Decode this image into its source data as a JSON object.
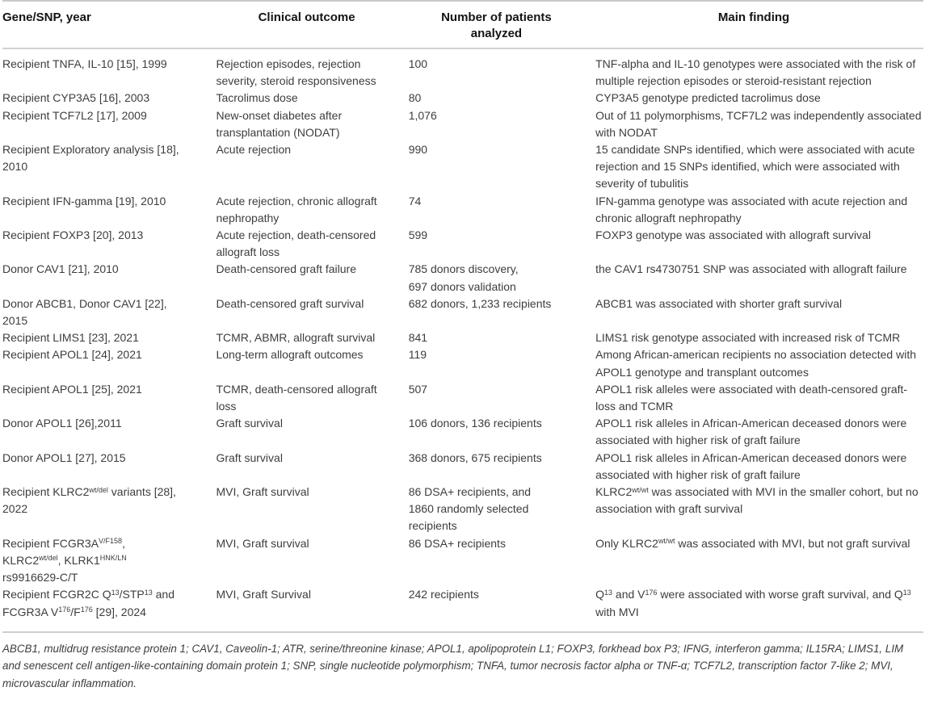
{
  "table": {
    "headers": [
      {
        "label": "Gene/SNP, year"
      },
      {
        "label": "Clinical outcome"
      },
      {
        "label": "Number of patients\nanalyzed"
      },
      {
        "label": "Main finding"
      }
    ],
    "rows": [
      {
        "gene": "Recipient TNFA, IL-10 [15], 1999",
        "outcome": "Rejection episodes, rejection severity, steroid responsiveness",
        "patients": "100",
        "finding": "TNF-alpha and IL-10 genotypes were associated with the risk of multiple rejection episodes or steroid-resistant rejection"
      },
      {
        "gene": "Recipient CYP3A5 [16], 2003",
        "outcome": "Tacrolimus dose",
        "patients": "80",
        "finding": "CYP3A5 genotype predicted tacrolimus dose"
      },
      {
        "gene": "Recipient TCF7L2 [17], 2009",
        "outcome": "New-onset diabetes after transplantation (NODAT)",
        "patients": "1,076",
        "finding": "Out of 11 polymorphisms, TCF7L2 was independently associated with NODAT"
      },
      {
        "gene": "Recipient Exploratory analysis [18],\n2010",
        "outcome": "Acute rejection",
        "patients": "990",
        "finding": "15 candidate SNPs identified, which were associated with acute rejection and 15 SNPs identified, which were associated with severity of tubulitis"
      },
      {
        "gene": "Recipient IFN-gamma [19], 2010",
        "outcome": "Acute rejection, chronic allograft nephropathy",
        "patients": "74",
        "finding": "IFN-gamma genotype was associated with acute rejection and chronic allograft nephropathy"
      },
      {
        "gene": "Recipient FOXP3 [20], 2013",
        "outcome": "Acute rejection, death-censored allograft loss",
        "patients": "599",
        "finding": "FOXP3 genotype was associated with allograft survival"
      },
      {
        "gene": "Donor CAV1 [21], 2010",
        "outcome": "Death-censored graft failure",
        "patients": "785 donors discovery,\n697 donors validation",
        "finding": "the CAV1 rs4730751 SNP was associated with allograft failure"
      },
      {
        "gene": "Donor ABCB1, Donor CAV1 [22],\n2015",
        "outcome": "Death-censored graft survival",
        "patients": "682 donors, 1,233 recipients",
        "finding": "ABCB1 was associated with shorter graft survival"
      },
      {
        "gene": "Recipient LIMS1 [23], 2021",
        "outcome": "TCMR, ABMR, allograft survival",
        "patients": "841",
        "finding": "LIMS1 risk genotype associated with increased risk of TCMR"
      },
      {
        "gene": "Recipient APOL1 [24], 2021",
        "outcome": "Long-term allograft outcomes",
        "patients": "119",
        "finding": "Among African-american recipients no association detected with APOL1 genotype and transplant outcomes"
      },
      {
        "gene": "Recipient APOL1 [25], 2021",
        "outcome": "TCMR, death-censored allograft loss",
        "patients": "507",
        "finding": "APOL1 risk alleles were associated with death-censored graft- loss and TCMR"
      },
      {
        "gene": "Donor APOL1 [26],2011",
        "outcome": "Graft survival",
        "patients": "106 donors, 136 recipients",
        "finding": "APOL1 risk alleles in African-American deceased donors were associated with higher risk of graft failure"
      },
      {
        "gene": "Donor APOL1 [27], 2015",
        "outcome": "Graft survival",
        "patients": "368 donors, 675 recipients",
        "finding": "APOL1 risk alleles in African-American deceased donors were associated with higher risk of graft failure"
      },
      {
        "gene": "Recipient KLRC2^{wt/del} variants [28],\n2022",
        "outcome": "MVI, Graft survival",
        "patients": "86 DSA+ recipients, and\n1860 randomly selected\nrecipients",
        "finding": "KLRC2^{wt/wt} was associated with MVI in the smaller cohort, but no association with graft survival"
      },
      {
        "gene": "Recipient FCGR3A^{V/F158},\nKLRC2^{wt/del}, KLRK1^{HNK/LN}\nrs9916629-C/T",
        "outcome": "MVI, Graft survival",
        "patients": "86 DSA+ recipients",
        "finding": "Only KLRC2^{wt/wt} was associated with MVI, but not graft survival"
      },
      {
        "gene": "Recipient FCGR2C Q^{13}/STP^{13} and\nFCGR3A V^{176}/F^{176} [29], 2024",
        "outcome": "MVI, Graft Survival",
        "patients": "242 recipients",
        "finding": "Q^{13} and V^{176} were associated with worse graft survival, and Q^{13} with MVI"
      }
    ],
    "footnote": "ABCB1, multidrug resistance protein 1; CAV1, Caveolin-1; ATR, serine/threonine kinase; APOL1, apolipoprotein L1; FOXP3, forkhead box P3; IFNG, interferon gamma; IL15RA; LIMS1, LIM and senescent cell antigen-like-containing domain protein 1; SNP, single nucleotide polymorphism; TNFA, tumor necrosis factor alpha or TNF-α; TCF7L2, transcription factor 7-like 2; MVI, microvascular inflammation.",
    "colors": {
      "body_text": "#3d3d3d",
      "header_text": "#141414",
      "rule": "#c9c9c9",
      "background": "#ffffff"
    }
  }
}
